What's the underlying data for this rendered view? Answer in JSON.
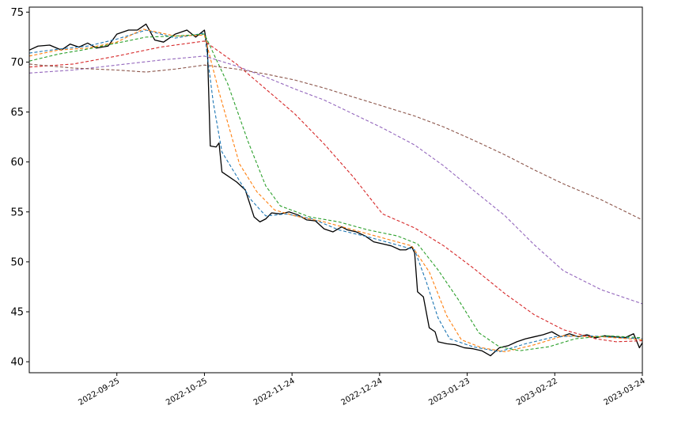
{
  "chart_data": {
    "type": "line",
    "title": "",
    "xlabel": "",
    "ylabel": "",
    "x_range": [
      "2022-08-26",
      "2023-03-24"
    ],
    "ylim": [
      38.9,
      75.5
    ],
    "x_tick_labels": [
      "2022-09-25",
      "2022-10-25",
      "2022-11-24",
      "2022-12-24",
      "2023-01-23",
      "2023-02-22",
      "2023-03-24"
    ],
    "y_tick_labels": [
      "40",
      "45",
      "50",
      "55",
      "60",
      "65",
      "70",
      "75"
    ],
    "y_ticks": [
      40,
      45,
      50,
      55,
      60,
      65,
      70,
      75
    ],
    "grid": false,
    "legend": "none",
    "series": [
      {
        "color": "#000000",
        "style": "solid",
        "points": [
          [
            "2022-08-26",
            71.2
          ],
          [
            "2022-08-29",
            71.6
          ],
          [
            "2022-09-02",
            71.7
          ],
          [
            "2022-09-06",
            71.2
          ],
          [
            "2022-09-09",
            71.8
          ],
          [
            "2022-09-12",
            71.5
          ],
          [
            "2022-09-15",
            71.9
          ],
          [
            "2022-09-18",
            71.4
          ],
          [
            "2022-09-22",
            71.6
          ],
          [
            "2022-09-25",
            72.8
          ],
          [
            "2022-09-29",
            73.2
          ],
          [
            "2022-10-02",
            73.2
          ],
          [
            "2022-10-05",
            73.8
          ],
          [
            "2022-10-08",
            72.2
          ],
          [
            "2022-10-11",
            72.0
          ],
          [
            "2022-10-15",
            72.8
          ],
          [
            "2022-10-19",
            73.2
          ],
          [
            "2022-10-22",
            72.5
          ],
          [
            "2022-10-25",
            73.2
          ],
          [
            "2022-10-26",
            71.5
          ],
          [
            "2022-10-27",
            61.6
          ],
          [
            "2022-10-29",
            61.5
          ],
          [
            "2022-10-30",
            61.9
          ],
          [
            "2022-10-31",
            59.0
          ],
          [
            "2022-11-02",
            58.6
          ],
          [
            "2022-11-05",
            58.0
          ],
          [
            "2022-11-08",
            57.2
          ],
          [
            "2022-11-11",
            54.5
          ],
          [
            "2022-11-13",
            54.0
          ],
          [
            "2022-11-15",
            54.3
          ],
          [
            "2022-11-17",
            54.9
          ],
          [
            "2022-11-20",
            54.8
          ],
          [
            "2022-11-23",
            55.0
          ],
          [
            "2022-11-26",
            54.7
          ],
          [
            "2022-11-29",
            54.2
          ],
          [
            "2022-12-02",
            54.1
          ],
          [
            "2022-12-05",
            53.3
          ],
          [
            "2022-12-08",
            53.0
          ],
          [
            "2022-12-11",
            53.5
          ],
          [
            "2022-12-13",
            53.2
          ],
          [
            "2022-12-16",
            53.0
          ],
          [
            "2022-12-19",
            52.6
          ],
          [
            "2022-12-22",
            52.0
          ],
          [
            "2022-12-25",
            51.8
          ],
          [
            "2022-12-28",
            51.6
          ],
          [
            "2022-12-31",
            51.2
          ],
          [
            "2023-01-02",
            51.2
          ],
          [
            "2023-01-04",
            51.5
          ],
          [
            "2023-01-05",
            50.9
          ],
          [
            "2023-01-06",
            47.0
          ],
          [
            "2023-01-08",
            46.5
          ],
          [
            "2023-01-10",
            43.4
          ],
          [
            "2023-01-12",
            43.0
          ],
          [
            "2023-01-13",
            42.0
          ],
          [
            "2023-01-16",
            41.8
          ],
          [
            "2023-01-19",
            41.7
          ],
          [
            "2023-01-22",
            41.4
          ],
          [
            "2023-01-25",
            41.3
          ],
          [
            "2023-01-28",
            41.1
          ],
          [
            "2023-01-31",
            40.6
          ],
          [
            "2023-02-03",
            41.4
          ],
          [
            "2023-02-06",
            41.6
          ],
          [
            "2023-02-09",
            42.0
          ],
          [
            "2023-02-12",
            42.3
          ],
          [
            "2023-02-15",
            42.5
          ],
          [
            "2023-02-18",
            42.7
          ],
          [
            "2023-02-21",
            43.0
          ],
          [
            "2023-02-24",
            42.5
          ],
          [
            "2023-02-27",
            42.8
          ],
          [
            "2023-03-02",
            42.5
          ],
          [
            "2023-03-05",
            42.7
          ],
          [
            "2023-03-08",
            42.4
          ],
          [
            "2023-03-11",
            42.6
          ],
          [
            "2023-03-14",
            42.5
          ],
          [
            "2023-03-18",
            42.4
          ],
          [
            "2023-03-21",
            42.8
          ],
          [
            "2023-03-23",
            41.4
          ],
          [
            "2023-03-24",
            41.9
          ]
        ]
      },
      {
        "color": "#1f77b4",
        "style": "dashed",
        "points": [
          [
            "2022-08-26",
            70.9
          ],
          [
            "2022-09-05",
            71.3
          ],
          [
            "2022-09-15",
            71.6
          ],
          [
            "2022-09-25",
            72.3
          ],
          [
            "2022-10-05",
            73.2
          ],
          [
            "2022-10-15",
            72.4
          ],
          [
            "2022-10-25",
            72.9
          ],
          [
            "2022-10-28",
            66.0
          ],
          [
            "2022-10-31",
            61.0
          ],
          [
            "2022-11-05",
            58.6
          ],
          [
            "2022-11-10",
            56.2
          ],
          [
            "2022-11-15",
            54.6
          ],
          [
            "2022-11-22",
            54.8
          ],
          [
            "2022-12-01",
            54.3
          ],
          [
            "2022-12-10",
            53.2
          ],
          [
            "2022-12-20",
            52.5
          ],
          [
            "2022-12-30",
            51.7
          ],
          [
            "2023-01-05",
            51.2
          ],
          [
            "2023-01-09",
            48.0
          ],
          [
            "2023-01-13",
            44.4
          ],
          [
            "2023-01-17",
            42.3
          ],
          [
            "2023-01-25",
            41.5
          ],
          [
            "2023-02-03",
            41.0
          ],
          [
            "2023-02-12",
            41.8
          ],
          [
            "2023-02-22",
            42.5
          ],
          [
            "2023-03-05",
            42.6
          ],
          [
            "2023-03-24",
            42.3
          ]
        ]
      },
      {
        "color": "#ff7f0e",
        "style": "dashed",
        "points": [
          [
            "2022-08-26",
            70.6
          ],
          [
            "2022-09-05",
            71.2
          ],
          [
            "2022-09-15",
            71.4
          ],
          [
            "2022-09-25",
            72.0
          ],
          [
            "2022-10-04",
            73.3
          ],
          [
            "2022-10-15",
            72.6
          ],
          [
            "2022-10-25",
            72.7
          ],
          [
            "2022-10-30",
            67.0
          ],
          [
            "2022-11-06",
            59.8
          ],
          [
            "2022-11-12",
            57.0
          ],
          [
            "2022-11-18",
            55.2
          ],
          [
            "2022-11-25",
            54.6
          ],
          [
            "2022-12-05",
            54.0
          ],
          [
            "2022-12-15",
            53.2
          ],
          [
            "2022-12-25",
            52.4
          ],
          [
            "2023-01-04",
            51.6
          ],
          [
            "2023-01-10",
            49.0
          ],
          [
            "2023-01-16",
            44.6
          ],
          [
            "2023-01-21",
            42.2
          ],
          [
            "2023-01-28",
            41.4
          ],
          [
            "2023-02-05",
            41.0
          ],
          [
            "2023-02-15",
            41.7
          ],
          [
            "2023-02-25",
            42.6
          ],
          [
            "2023-03-10",
            42.5
          ],
          [
            "2023-03-24",
            42.2
          ]
        ]
      },
      {
        "color": "#2ca02c",
        "style": "dashed",
        "points": [
          [
            "2022-08-26",
            70.1
          ],
          [
            "2022-09-05",
            70.8
          ],
          [
            "2022-09-15",
            71.3
          ],
          [
            "2022-09-25",
            71.9
          ],
          [
            "2022-10-05",
            72.5
          ],
          [
            "2022-10-15",
            72.6
          ],
          [
            "2022-10-25",
            72.8
          ],
          [
            "2022-11-02",
            67.8
          ],
          [
            "2022-11-09",
            62.0
          ],
          [
            "2022-11-15",
            57.6
          ],
          [
            "2022-11-20",
            55.6
          ],
          [
            "2022-11-30",
            54.5
          ],
          [
            "2022-12-10",
            54.0
          ],
          [
            "2022-12-20",
            53.2
          ],
          [
            "2022-12-30",
            52.6
          ],
          [
            "2023-01-06",
            51.8
          ],
          [
            "2023-01-13",
            49.2
          ],
          [
            "2023-01-20",
            46.2
          ],
          [
            "2023-01-27",
            42.9
          ],
          [
            "2023-02-03",
            41.5
          ],
          [
            "2023-02-10",
            41.1
          ],
          [
            "2023-02-20",
            41.5
          ],
          [
            "2023-03-01",
            42.3
          ],
          [
            "2023-03-12",
            42.6
          ],
          [
            "2023-03-24",
            42.4
          ]
        ]
      },
      {
        "color": "#d62728",
        "style": "dashed",
        "points": [
          [
            "2022-08-26",
            69.5
          ],
          [
            "2022-09-10",
            69.8
          ],
          [
            "2022-09-25",
            70.6
          ],
          [
            "2022-10-10",
            71.5
          ],
          [
            "2022-10-25",
            72.1
          ],
          [
            "2022-11-05",
            69.8
          ],
          [
            "2022-11-15",
            67.3
          ],
          [
            "2022-11-25",
            64.8
          ],
          [
            "2022-12-05",
            61.8
          ],
          [
            "2022-12-15",
            58.5
          ],
          [
            "2022-12-25",
            54.8
          ],
          [
            "2023-01-05",
            53.4
          ],
          [
            "2023-01-15",
            51.6
          ],
          [
            "2023-01-25",
            49.4
          ],
          [
            "2023-02-05",
            46.8
          ],
          [
            "2023-02-15",
            44.7
          ],
          [
            "2023-02-25",
            43.2
          ],
          [
            "2023-03-08",
            42.3
          ],
          [
            "2023-03-15",
            42.0
          ],
          [
            "2023-03-24",
            42.1
          ]
        ]
      },
      {
        "color": "#9467bd",
        "style": "dashed",
        "points": [
          [
            "2022-08-26",
            68.9
          ],
          [
            "2022-09-10",
            69.2
          ],
          [
            "2022-09-25",
            69.7
          ],
          [
            "2022-10-10",
            70.2
          ],
          [
            "2022-10-25",
            70.6
          ],
          [
            "2022-11-05",
            69.6
          ],
          [
            "2022-11-15",
            68.5
          ],
          [
            "2022-11-25",
            67.3
          ],
          [
            "2022-12-05",
            66.2
          ],
          [
            "2022-12-15",
            64.8
          ],
          [
            "2022-12-25",
            63.4
          ],
          [
            "2023-01-05",
            61.7
          ],
          [
            "2023-01-15",
            59.6
          ],
          [
            "2023-01-25",
            57.2
          ],
          [
            "2023-02-05",
            54.6
          ],
          [
            "2023-02-15",
            51.7
          ],
          [
            "2023-02-25",
            49.1
          ],
          [
            "2023-03-10",
            47.2
          ],
          [
            "2023-03-24",
            45.8
          ]
        ]
      },
      {
        "color": "#8c564b",
        "style": "dashed",
        "points": [
          [
            "2022-08-26",
            69.8
          ],
          [
            "2022-09-10",
            69.4
          ],
          [
            "2022-09-25",
            69.2
          ],
          [
            "2022-10-05",
            69.0
          ],
          [
            "2022-10-15",
            69.3
          ],
          [
            "2022-10-25",
            69.7
          ],
          [
            "2022-11-05",
            69.3
          ],
          [
            "2022-11-15",
            68.8
          ],
          [
            "2022-11-25",
            68.2
          ],
          [
            "2022-12-05",
            67.4
          ],
          [
            "2022-12-15",
            66.5
          ],
          [
            "2022-12-25",
            65.6
          ],
          [
            "2023-01-05",
            64.6
          ],
          [
            "2023-01-15",
            63.5
          ],
          [
            "2023-01-25",
            62.2
          ],
          [
            "2023-02-05",
            60.7
          ],
          [
            "2023-02-15",
            59.2
          ],
          [
            "2023-02-25",
            57.8
          ],
          [
            "2023-03-10",
            56.2
          ],
          [
            "2023-03-24",
            54.2
          ]
        ]
      }
    ]
  }
}
